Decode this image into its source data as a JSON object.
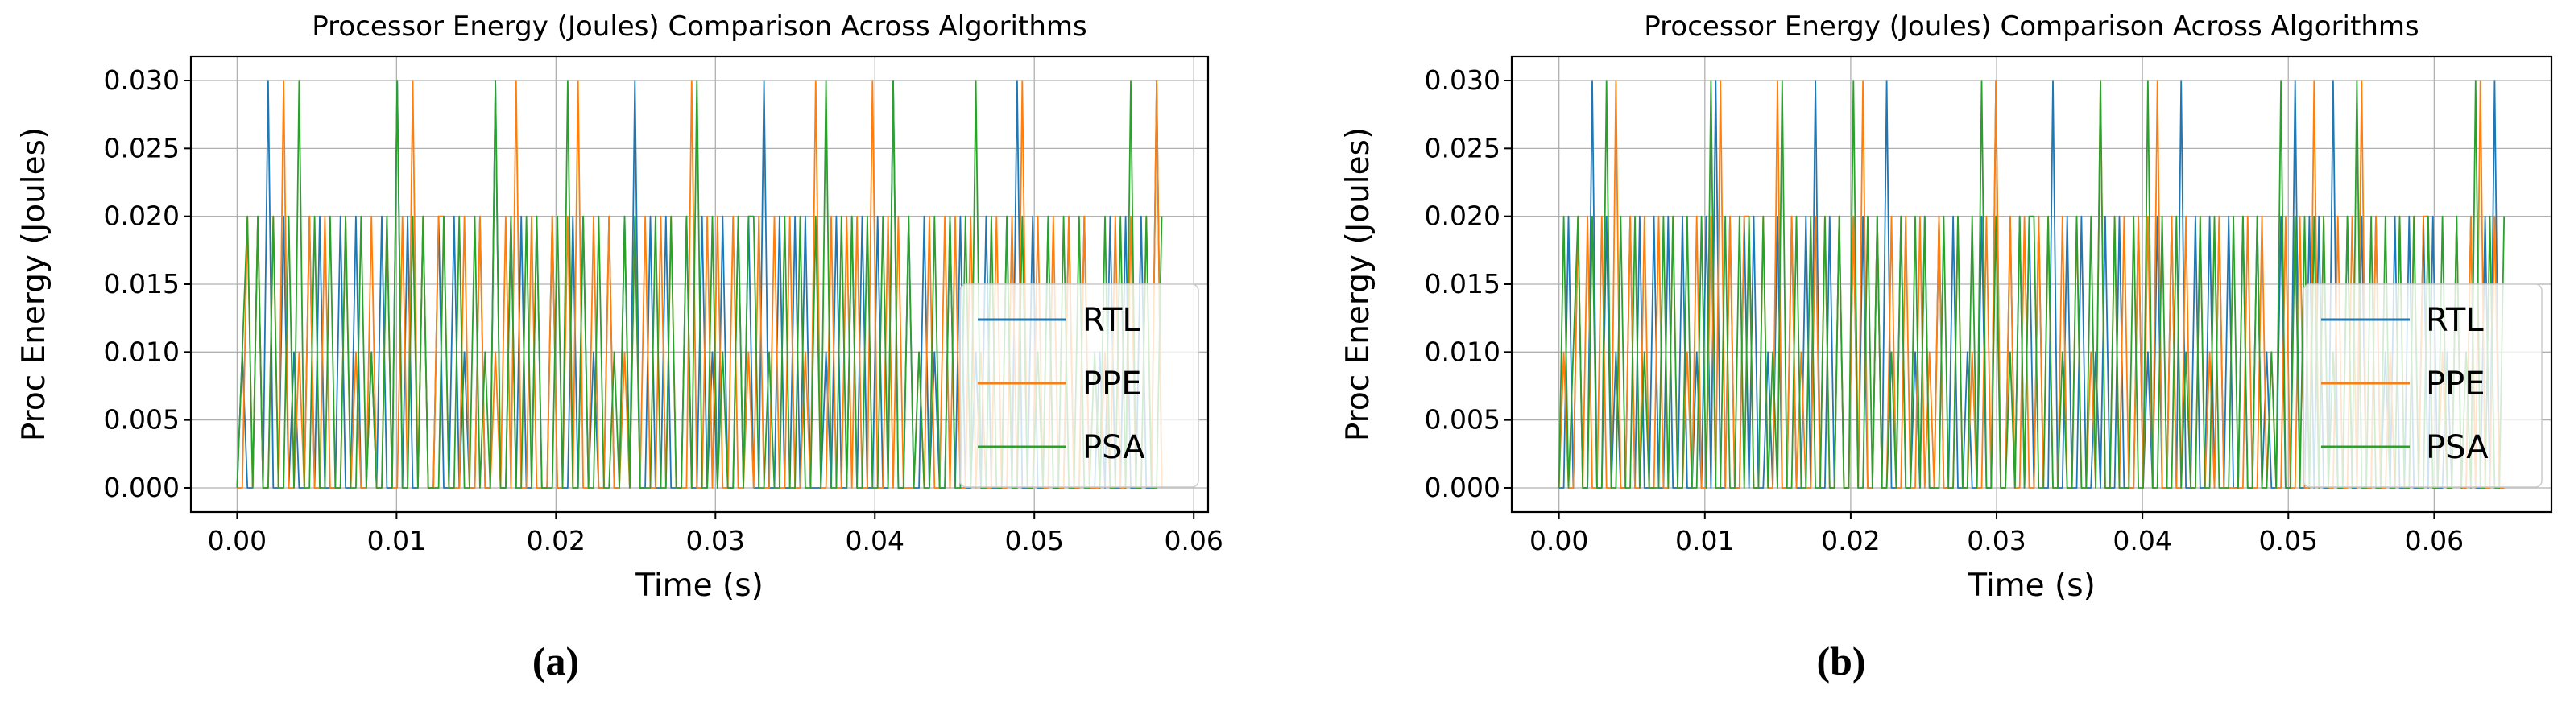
{
  "page": {
    "background": "#ffffff"
  },
  "chart_data": [
    {
      "type": "line",
      "caption": "(a)",
      "title": "Processor Energy (Joules) Comparison Across Algorithms",
      "xlabel": "Time (s)",
      "ylabel": "Proc Energy (Joules)",
      "grid": true,
      "grid_color": "#b0b0b0",
      "axes_bg": "#ffffff",
      "spine_color": "#000000",
      "xlim": [
        -0.0029,
        0.0609
      ],
      "ylim": [
        -0.00178,
        0.03178
      ],
      "xticks": {
        "values": [
          0,
          0.01,
          0.02,
          0.03,
          0.04,
          0.05,
          0.06
        ],
        "labels": [
          "0.00",
          "0.01",
          "0.02",
          "0.03",
          "0.04",
          "0.05",
          "0.06"
        ]
      },
      "yticks": {
        "values": [
          0,
          0.005,
          0.01,
          0.015,
          0.02,
          0.025,
          0.03
        ],
        "labels": [
          "0.000",
          "0.005",
          "0.010",
          "0.015",
          "0.020",
          "0.025",
          "0.030"
        ]
      },
      "legend": {
        "location": "lower right",
        "labels": [
          "RTL",
          "PPE",
          "PSA"
        ],
        "bg": "rgba(255,255,255,0.8)",
        "border": "#cccccc"
      },
      "dt": 0.000324,
      "value_unit_per_level": 0.01,
      "series": [
        {
          "name": "RTL",
          "color": "#1f77b4",
          "levels": "010020300201002020002002001020030200200200201002003002020020020002020100200203002002000200201020020200300200202000102002020020030020020100202001020002030020020002002001020020020030"
        },
        {
          "name": "PPE",
          "color": "#ff7f0e",
          "levels": "002020020300102002000201002002002030200220002002001020300200020020300200200102020020200030020200200102002002001030020020200300202000102002020020100200203002002002002000102002002030"
        },
        {
          "name": "PSA",
          "color": "#2ca02c",
          "levels": "012020020020300200200200201002030020200020020020103002002020002030020020010202000200200203002010020220010020020020300202002002030020100200200203002002002001020020020010200203002002"
        }
      ]
    },
    {
      "type": "line",
      "caption": "(b)",
      "title": "Processor Energy (Joules) Comparison Across Algorithms",
      "xlabel": "Time (s)",
      "ylabel": "Proc Energy (Joules)",
      "grid": true,
      "grid_color": "#b0b0b0",
      "axes_bg": "#ffffff",
      "spine_color": "#000000",
      "xlim": [
        -0.00324,
        0.06804
      ],
      "ylim": [
        -0.00178,
        0.03178
      ],
      "xticks": {
        "values": [
          0,
          0.01,
          0.02,
          0.03,
          0.04,
          0.05,
          0.06
        ],
        "labels": [
          "0.00",
          "0.01",
          "0.02",
          "0.03",
          "0.04",
          "0.05",
          "0.06"
        ]
      },
      "yticks": {
        "values": [
          0,
          0.005,
          0.01,
          0.015,
          0.02,
          0.025,
          0.03
        ],
        "labels": [
          "0.000",
          "0.005",
          "0.010",
          "0.015",
          "0.020",
          "0.025",
          "0.030"
        ]
      },
      "legend": {
        "location": "lower right",
        "labels": [
          "RTL",
          "PPE",
          "PSA"
        ],
        "bg": "rgba(255,255,255,0.8)",
        "border": "#cccccc"
      },
      "dt": 0.0003256,
      "value_unit_per_level": 0.01,
      "series": [
        {
          "name": "RTL",
          "color": "#1f77b4",
          "levels": "0020200300201002020020020020010203002002020010200200203002020020200203002001020020020010020030020202020030020020010200200020102002030020020202002002010020030020200300200200201020020020200102002002030 0"
        },
        {
          "name": "PPE",
          "color": "#ff7f0e",
          "levels": "0100202002003002002002002001020020302002200200300201002020020020300200200200201020002001002030020020020200200200103002020020203002002002010200000200201002002003020020020300200102002022001002002030020 0"
        },
        {
          "name": "PSA",
          "color": "#2ca02c",
          "levels": "0201200200300200201000202002002030020020200201030020020020020030020200102002020002002002030020010202200200100200203002000200300200201002002000202002001030020202020100203002002002002002002002010300200 2"
        }
      ]
    }
  ]
}
